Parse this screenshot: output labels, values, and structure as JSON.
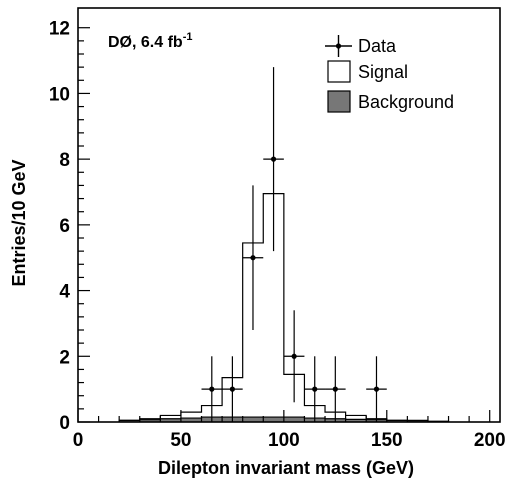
{
  "chart_data": {
    "type": "bar",
    "xlabel": "Dilepton invariant mass (GeV)",
    "ylabel": "Entries/10 GeV",
    "xlim": [
      0,
      205
    ],
    "ylim": [
      0,
      12.6
    ],
    "x_ticks": [
      0,
      50,
      100,
      150,
      200
    ],
    "y_ticks": [
      0,
      2,
      4,
      6,
      8,
      10,
      12
    ],
    "grid": false,
    "legend_position": "top-right",
    "annotation": {
      "main": "DØ, 6.4 fb",
      "superscript": "-1"
    },
    "series": [
      {
        "name": "Signal",
        "kind": "histogram",
        "fill": "#ffffff",
        "edges": [
          20,
          30,
          40,
          50,
          60,
          70,
          80,
          90,
          100,
          110,
          120,
          130,
          140,
          150,
          160,
          170,
          180
        ],
        "values": [
          0.05,
          0.1,
          0.2,
          0.3,
          0.5,
          1.35,
          5.45,
          6.95,
          1.45,
          0.5,
          0.3,
          0.2,
          0.1,
          0.05,
          0.05,
          0.02
        ]
      },
      {
        "name": "Background",
        "kind": "histogram",
        "fill": "#777777",
        "edges": [
          20,
          30,
          40,
          50,
          60,
          70,
          80,
          90,
          100,
          110,
          120,
          130,
          140,
          150,
          160,
          170,
          180
        ],
        "values": [
          0.05,
          0.07,
          0.1,
          0.12,
          0.15,
          0.15,
          0.15,
          0.15,
          0.15,
          0.12,
          0.1,
          0.08,
          0.07,
          0.05,
          0.04,
          0.02
        ]
      },
      {
        "name": "Data",
        "kind": "points_with_errors",
        "points": [
          {
            "x": 65,
            "y": 1,
            "err_lo": 1,
            "err_hi": 1
          },
          {
            "x": 75,
            "y": 1,
            "err_lo": 1,
            "err_hi": 1
          },
          {
            "x": 85,
            "y": 5,
            "err_lo": 2.2,
            "err_hi": 2.2
          },
          {
            "x": 95,
            "y": 8,
            "err_lo": 2.8,
            "err_hi": 2.8
          },
          {
            "x": 105,
            "y": 2,
            "err_lo": 1.4,
            "err_hi": 1.4
          },
          {
            "x": 115,
            "y": 1,
            "err_lo": 1,
            "err_hi": 1
          },
          {
            "x": 125,
            "y": 1,
            "err_lo": 1,
            "err_hi": 1
          },
          {
            "x": 145,
            "y": 1,
            "err_lo": 1,
            "err_hi": 1
          }
        ]
      }
    ],
    "legend": [
      "Data",
      "Signal",
      "Background"
    ]
  }
}
